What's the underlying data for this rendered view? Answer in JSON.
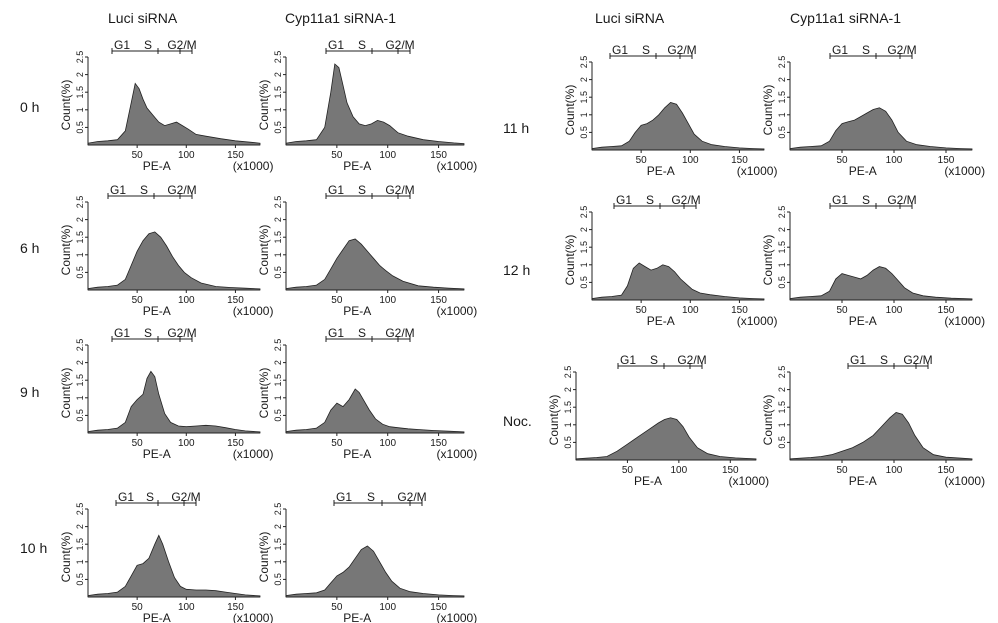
{
  "column_headers": [
    "Luci siRNA",
    "Cyp11a1 siRNA-1",
    "Luci siRNA",
    "Cyp11a1 siRNA-1"
  ],
  "row_labels": [
    "0 h",
    "6 h",
    "9 h",
    "10 h",
    "11 h",
    "12 h",
    "Noc."
  ],
  "axis": {
    "ylabel": "Count(%)",
    "yticks": [
      "0.5",
      "1",
      "1.5",
      "2",
      "2.5"
    ],
    "xlabel": "PE-A",
    "xunit": "(x1000)",
    "xticks": [
      "50",
      "100",
      "150"
    ]
  },
  "gates": {
    "g1": "G1",
    "s": "S",
    "g2m": "G2/M"
  },
  "colors": {
    "fill": "#777777",
    "stroke": "#222222",
    "axis": "#222222"
  },
  "chart_data": [
    {
      "type": "area",
      "timepoint": "0 h",
      "condition": "Luci siRNA",
      "xlabel": "PE-A",
      "ylabel": "Count(%)",
      "xlim": [
        0,
        175
      ],
      "ylim": [
        0,
        2.5
      ],
      "x": [
        0,
        10,
        20,
        30,
        38,
        44,
        48,
        52,
        56,
        60,
        66,
        72,
        78,
        84,
        90,
        96,
        102,
        110,
        120,
        135,
        150,
        165,
        175
      ],
      "y": [
        0.05,
        0.1,
        0.12,
        0.15,
        0.4,
        1.2,
        1.75,
        1.6,
        1.3,
        1.05,
        0.85,
        0.65,
        0.55,
        0.6,
        0.65,
        0.55,
        0.45,
        0.3,
        0.25,
        0.18,
        0.12,
        0.08,
        0.05
      ]
    },
    {
      "type": "area",
      "timepoint": "0 h",
      "condition": "Cyp11a1 siRNA-1",
      "xlabel": "PE-A",
      "ylabel": "Count(%)",
      "xlim": [
        0,
        175
      ],
      "ylim": [
        0,
        2.5
      ],
      "x": [
        0,
        10,
        20,
        30,
        38,
        44,
        48,
        52,
        56,
        60,
        66,
        72,
        78,
        84,
        90,
        96,
        102,
        110,
        120,
        135,
        150,
        165,
        175
      ],
      "y": [
        0.05,
        0.1,
        0.12,
        0.15,
        0.5,
        1.5,
        2.3,
        2.2,
        1.7,
        1.2,
        0.8,
        0.6,
        0.55,
        0.6,
        0.7,
        0.65,
        0.55,
        0.35,
        0.25,
        0.15,
        0.1,
        0.06,
        0.04
      ]
    },
    {
      "type": "area",
      "timepoint": "6 h",
      "condition": "Luci siRNA",
      "xlabel": "PE-A",
      "ylabel": "Count(%)",
      "xlim": [
        0,
        175
      ],
      "ylim": [
        0,
        2.5
      ],
      "x": [
        0,
        10,
        20,
        30,
        38,
        44,
        50,
        56,
        62,
        68,
        74,
        80,
        86,
        92,
        98,
        105,
        115,
        130,
        145,
        160,
        175
      ],
      "y": [
        0.04,
        0.08,
        0.1,
        0.14,
        0.3,
        0.7,
        1.1,
        1.4,
        1.6,
        1.65,
        1.5,
        1.25,
        0.95,
        0.7,
        0.5,
        0.35,
        0.2,
        0.1,
        0.07,
        0.05,
        0.03
      ]
    },
    {
      "type": "area",
      "timepoint": "6 h",
      "condition": "Cyp11a1 siRNA-1",
      "xlabel": "PE-A",
      "ylabel": "Count(%)",
      "xlim": [
        0,
        175
      ],
      "ylim": [
        0,
        2.5
      ],
      "x": [
        0,
        10,
        20,
        30,
        38,
        44,
        50,
        56,
        62,
        68,
        74,
        80,
        86,
        92,
        98,
        105,
        115,
        130,
        145,
        160,
        175
      ],
      "y": [
        0.04,
        0.08,
        0.1,
        0.14,
        0.3,
        0.6,
        0.9,
        1.15,
        1.4,
        1.45,
        1.3,
        1.1,
        0.9,
        0.7,
        0.55,
        0.4,
        0.25,
        0.12,
        0.08,
        0.05,
        0.03
      ]
    },
    {
      "type": "area",
      "timepoint": "9 h",
      "condition": "Luci siRNA",
      "xlabel": "PE-A",
      "ylabel": "Count(%)",
      "xlim": [
        0,
        175
      ],
      "ylim": [
        0,
        2.5
      ],
      "x": [
        0,
        10,
        20,
        30,
        38,
        44,
        50,
        56,
        60,
        64,
        68,
        72,
        78,
        84,
        92,
        100,
        110,
        120,
        130,
        140,
        150,
        160,
        175
      ],
      "y": [
        0.04,
        0.08,
        0.1,
        0.14,
        0.3,
        0.75,
        0.95,
        1.1,
        1.55,
        1.75,
        1.6,
        1.1,
        0.55,
        0.3,
        0.2,
        0.18,
        0.2,
        0.22,
        0.2,
        0.15,
        0.1,
        0.06,
        0.03
      ]
    },
    {
      "type": "area",
      "timepoint": "9 h",
      "condition": "Cyp11a1 siRNA-1",
      "xlabel": "PE-A",
      "ylabel": "Count(%)",
      "xlim": [
        0,
        175
      ],
      "ylim": [
        0,
        2.5
      ],
      "x": [
        0,
        10,
        20,
        30,
        38,
        44,
        50,
        56,
        62,
        68,
        72,
        76,
        82,
        88,
        95,
        102,
        110,
        120,
        130,
        145,
        160,
        175
      ],
      "y": [
        0.04,
        0.08,
        0.1,
        0.14,
        0.3,
        0.65,
        0.85,
        0.75,
        0.95,
        1.25,
        1.15,
        0.95,
        0.65,
        0.4,
        0.25,
        0.18,
        0.15,
        0.12,
        0.1,
        0.07,
        0.05,
        0.03
      ]
    },
    {
      "type": "area",
      "timepoint": "10 h",
      "condition": "Luci siRNA",
      "xlabel": "PE-A",
      "ylabel": "Count(%)",
      "xlim": [
        0,
        175
      ],
      "ylim": [
        0,
        2.5
      ],
      "x": [
        0,
        10,
        20,
        30,
        38,
        44,
        50,
        56,
        62,
        68,
        72,
        76,
        82,
        88,
        94,
        100,
        110,
        120,
        130,
        140,
        150,
        160,
        175
      ],
      "y": [
        0.04,
        0.08,
        0.1,
        0.14,
        0.3,
        0.6,
        0.9,
        0.95,
        1.1,
        1.5,
        1.75,
        1.5,
        1.0,
        0.55,
        0.3,
        0.22,
        0.2,
        0.2,
        0.18,
        0.14,
        0.1,
        0.06,
        0.03
      ]
    },
    {
      "type": "area",
      "timepoint": "10 h",
      "condition": "Cyp11a1 siRNA-1",
      "xlabel": "PE-A",
      "ylabel": "Count(%)",
      "xlim": [
        0,
        175
      ],
      "ylim": [
        0,
        2.5
      ],
      "x": [
        0,
        10,
        20,
        30,
        38,
        44,
        50,
        56,
        62,
        68,
        74,
        80,
        86,
        92,
        98,
        104,
        112,
        122,
        135,
        150,
        165,
        175
      ],
      "y": [
        0.04,
        0.08,
        0.1,
        0.12,
        0.2,
        0.4,
        0.6,
        0.7,
        0.85,
        1.1,
        1.35,
        1.45,
        1.3,
        1.0,
        0.7,
        0.45,
        0.25,
        0.15,
        0.1,
        0.06,
        0.04,
        0.03
      ]
    },
    {
      "type": "area",
      "timepoint": "11 h",
      "condition": "Luci siRNA",
      "xlabel": "PE-A",
      "ylabel": "Count(%)",
      "xlim": [
        0,
        175
      ],
      "ylim": [
        0,
        2.5
      ],
      "x": [
        0,
        10,
        20,
        30,
        38,
        44,
        50,
        56,
        62,
        68,
        74,
        80,
        86,
        92,
        98,
        104,
        112,
        122,
        135,
        150,
        165,
        175
      ],
      "y": [
        0.04,
        0.08,
        0.1,
        0.12,
        0.25,
        0.5,
        0.7,
        0.75,
        0.85,
        1.0,
        1.2,
        1.35,
        1.3,
        1.05,
        0.75,
        0.45,
        0.25,
        0.15,
        0.1,
        0.06,
        0.04,
        0.03
      ]
    },
    {
      "type": "area",
      "timepoint": "11 h",
      "condition": "Cyp11a1 siRNA-1",
      "xlabel": "PE-A",
      "ylabel": "Count(%)",
      "xlim": [
        0,
        175
      ],
      "ylim": [
        0,
        2.5
      ],
      "x": [
        0,
        10,
        20,
        30,
        38,
        44,
        50,
        56,
        62,
        68,
        74,
        80,
        86,
        92,
        98,
        104,
        112,
        122,
        135,
        150,
        165,
        175
      ],
      "y": [
        0.04,
        0.08,
        0.1,
        0.12,
        0.25,
        0.55,
        0.75,
        0.8,
        0.85,
        0.95,
        1.05,
        1.15,
        1.2,
        1.1,
        0.85,
        0.5,
        0.25,
        0.15,
        0.1,
        0.06,
        0.04,
        0.03
      ]
    },
    {
      "type": "area",
      "timepoint": "12 h",
      "condition": "Luci siRNA",
      "xlabel": "PE-A",
      "ylabel": "Count(%)",
      "xlim": [
        0,
        175
      ],
      "ylim": [
        0,
        2.5
      ],
      "x": [
        0,
        10,
        20,
        30,
        36,
        42,
        48,
        54,
        60,
        66,
        72,
        78,
        84,
        90,
        96,
        102,
        110,
        120,
        135,
        150,
        165,
        175
      ],
      "y": [
        0.04,
        0.08,
        0.1,
        0.14,
        0.4,
        0.9,
        1.05,
        0.95,
        0.85,
        0.9,
        1.0,
        0.95,
        0.8,
        0.6,
        0.45,
        0.3,
        0.2,
        0.15,
        0.1,
        0.06,
        0.04,
        0.03
      ]
    },
    {
      "type": "area",
      "timepoint": "12 h",
      "condition": "Cyp11a1 siRNA-1",
      "xlabel": "PE-A",
      "ylabel": "Count(%)",
      "xlim": [
        0,
        175
      ],
      "ylim": [
        0,
        2.5
      ],
      "x": [
        0,
        10,
        20,
        30,
        38,
        44,
        50,
        56,
        62,
        68,
        74,
        80,
        86,
        92,
        98,
        104,
        110,
        118,
        128,
        140,
        155,
        175
      ],
      "y": [
        0.04,
        0.08,
        0.1,
        0.12,
        0.25,
        0.6,
        0.75,
        0.7,
        0.65,
        0.6,
        0.7,
        0.85,
        0.95,
        0.9,
        0.75,
        0.55,
        0.35,
        0.2,
        0.12,
        0.08,
        0.05,
        0.03
      ]
    },
    {
      "type": "area",
      "timepoint": "Noc.",
      "condition": "Luci siRNA",
      "xlabel": "PE-A",
      "ylabel": "Count(%)",
      "xlim": [
        0,
        175
      ],
      "ylim": [
        0,
        2.5
      ],
      "x": [
        0,
        10,
        20,
        30,
        40,
        50,
        60,
        70,
        80,
        86,
        92,
        98,
        104,
        110,
        118,
        128,
        140,
        155,
        175
      ],
      "y": [
        0.03,
        0.05,
        0.07,
        0.1,
        0.25,
        0.45,
        0.65,
        0.85,
        1.05,
        1.15,
        1.2,
        1.15,
        0.95,
        0.65,
        0.35,
        0.18,
        0.1,
        0.06,
        0.03
      ]
    },
    {
      "type": "area",
      "timepoint": "Noc.",
      "condition": "Cyp11a1 siRNA-1",
      "xlabel": "PE-A",
      "ylabel": "Count(%)",
      "xlim": [
        0,
        175
      ],
      "ylim": [
        0,
        2.5
      ],
      "x": [
        0,
        10,
        20,
        30,
        40,
        50,
        60,
        70,
        80,
        88,
        96,
        102,
        108,
        114,
        120,
        128,
        138,
        150,
        165,
        175
      ],
      "y": [
        0.03,
        0.05,
        0.07,
        0.1,
        0.15,
        0.25,
        0.35,
        0.5,
        0.7,
        0.95,
        1.2,
        1.35,
        1.3,
        1.05,
        0.7,
        0.35,
        0.15,
        0.08,
        0.05,
        0.03
      ]
    }
  ]
}
